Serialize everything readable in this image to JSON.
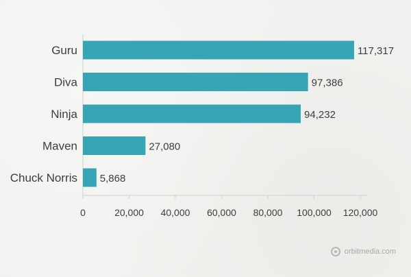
{
  "chart_data": {
    "type": "bar",
    "orientation": "horizontal",
    "categories": [
      "Guru",
      "Diva",
      "Ninja",
      "Maven",
      "Chuck Norris"
    ],
    "values": [
      117317,
      97386,
      94232,
      27080,
      5868
    ],
    "value_labels": [
      "117,317",
      "97,386",
      "94,232",
      "27,080",
      "5,868"
    ],
    "xlim": [
      0,
      120000
    ],
    "x_ticks": [
      0,
      20000,
      40000,
      60000,
      80000,
      100000,
      120000
    ],
    "x_tick_labels": [
      "0",
      "20,000",
      "40,000",
      "60,000",
      "80,000",
      "100,000",
      "120,000"
    ],
    "title": "",
    "xlabel": "",
    "ylabel": "",
    "grid": false,
    "legend": "none",
    "bar_color": "#36a6b4",
    "axis_color": "#cfcfcf"
  },
  "watermark": {
    "text": "orbitmedia.com",
    "icon": "orbit-logo-icon"
  }
}
